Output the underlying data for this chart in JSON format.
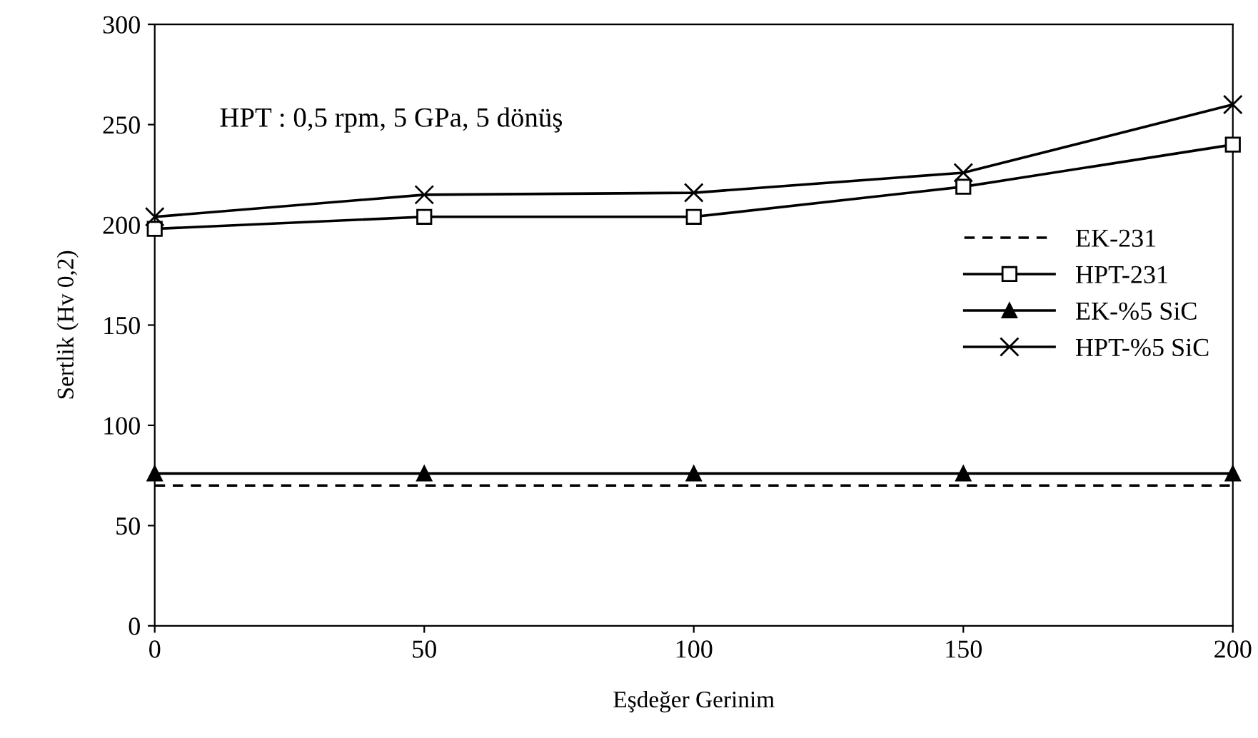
{
  "chart_data": {
    "type": "line",
    "xlabel": "Eşdeğer Gerinim",
    "ylabel": "Sertlik (Hv 0,2)",
    "annotations": [
      "HPT : 0,5 rpm, 5 GPa, 5 dönüş"
    ],
    "x": [
      0,
      50,
      100,
      150,
      200
    ],
    "xlim": [
      0,
      200
    ],
    "xticks": [
      0,
      50,
      100,
      150,
      200
    ],
    "ylim": [
      0,
      300
    ],
    "yticks": [
      0,
      50,
      100,
      150,
      200,
      250,
      300
    ],
    "grid": false,
    "legend": "right",
    "series": [
      {
        "name": "EK-231",
        "color": "#000000",
        "values": [
          70,
          70,
          70,
          70,
          70
        ],
        "marker": "none",
        "line_style": "dashed"
      },
      {
        "name": "HPT-231",
        "color": "#000000",
        "values": [
          198,
          204,
          204,
          219,
          240
        ],
        "marker": "square",
        "line_style": "solid"
      },
      {
        "name": "EK-%5 SiC",
        "color": "#000000",
        "values": [
          76,
          76,
          76,
          76,
          76
        ],
        "marker": "triangle",
        "line_style": "solid"
      },
      {
        "name": "HPT-%5 SiC",
        "color": "#000000",
        "values": [
          204,
          215,
          216,
          226,
          260
        ],
        "marker": "cross",
        "line_style": "solid"
      }
    ]
  }
}
